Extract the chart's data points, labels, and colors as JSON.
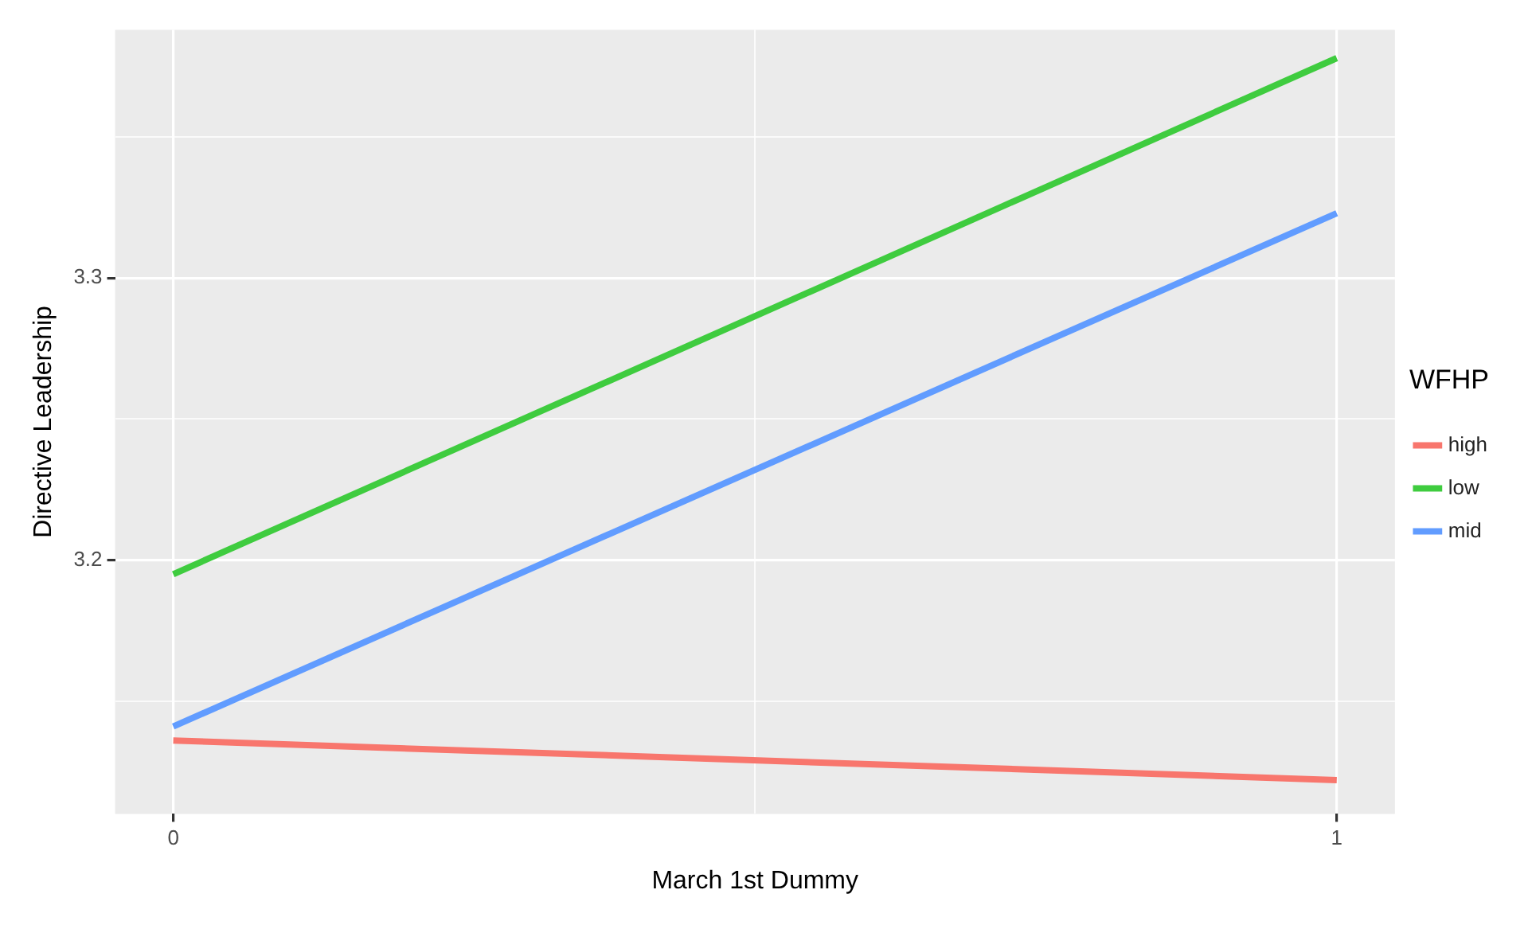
{
  "chart_data": {
    "type": "line",
    "xlabel": "March 1st Dummy",
    "ylabel": "Directive Leadership",
    "legend_title": "WFHP",
    "x": [
      0,
      1
    ],
    "series": [
      {
        "name": "high",
        "color": "#f8766d",
        "values": [
          3.136,
          3.122
        ]
      },
      {
        "name": "low",
        "color": "#3fcc3f",
        "values": [
          3.195,
          3.378
        ]
      },
      {
        "name": "mid",
        "color": "#619cff",
        "values": [
          3.141,
          3.323
        ]
      }
    ],
    "xlim": [
      -0.05,
      1.05
    ],
    "xticks": [
      0,
      {
        "value": 0.5,
        "label": null
      },
      1
    ],
    "ylim": [
      3.11,
      3.388
    ],
    "yticks": [
      {
        "value": 3.15,
        "label": null
      },
      3.2,
      {
        "value": 3.25,
        "label": null
      },
      3.3,
      {
        "value": 3.35,
        "label": null
      }
    ],
    "grid": true,
    "legend": "right",
    "marker": "none",
    "line_style": "solid"
  }
}
